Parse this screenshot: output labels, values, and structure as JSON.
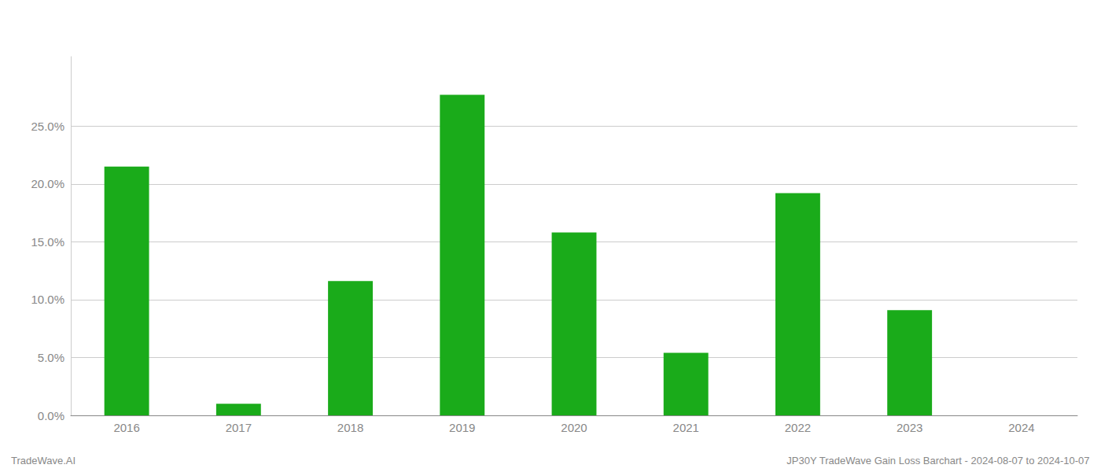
{
  "chart_data": {
    "type": "bar",
    "categories": [
      "2016",
      "2017",
      "2018",
      "2019",
      "2020",
      "2021",
      "2022",
      "2023",
      "2024"
    ],
    "values": [
      0.215,
      0.01,
      0.116,
      0.277,
      0.158,
      0.054,
      0.192,
      0.091,
      0.0
    ],
    "color": "#1aab1a",
    "ylim": [
      0,
      0.31
    ],
    "yticks": [
      {
        "value": 0.0,
        "label": "0.0%"
      },
      {
        "value": 0.05,
        "label": "5.0%"
      },
      {
        "value": 0.1,
        "label": "10.0%"
      },
      {
        "value": 0.15,
        "label": "15.0%"
      },
      {
        "value": 0.2,
        "label": "20.0%"
      },
      {
        "value": 0.25,
        "label": "25.0%"
      }
    ],
    "grid": true,
    "annotations": [
      "TradeWave.AI",
      "JP30Y TradeWave Gain Loss Barchart - 2024-08-07 to 2024-10-07"
    ]
  }
}
